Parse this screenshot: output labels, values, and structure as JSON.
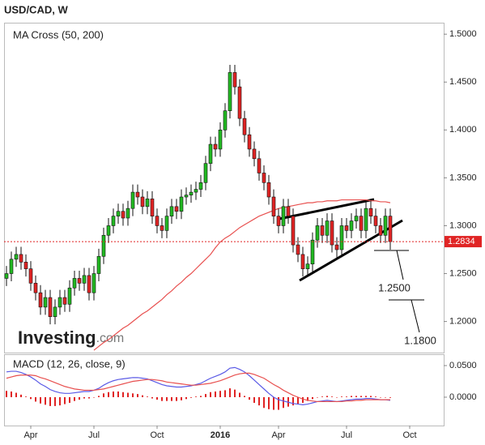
{
  "title": "USD/CAD, W",
  "logo": [
    "Investing",
    ".com"
  ],
  "chart_data": [
    {
      "type": "candlestick",
      "title": "MA Cross (50, 200)",
      "categories": [
        null,
        null,
        null,
        null,
        null,
        "Apr",
        null,
        null,
        null,
        null,
        null,
        null,
        null,
        null,
        null,
        null,
        null,
        null,
        "Jul",
        null,
        null,
        null,
        null,
        null,
        null,
        null,
        null,
        null,
        null,
        null,
        null,
        "Oct",
        null,
        null,
        null,
        null,
        null,
        null,
        null,
        null,
        null,
        null,
        null,
        null,
        "2016",
        null,
        null,
        null,
        null,
        null,
        null,
        null,
        null,
        null,
        null,
        null,
        "Apr",
        null,
        null,
        null,
        null,
        null,
        null,
        null,
        null,
        null,
        null,
        null,
        null,
        null,
        "Jul",
        null,
        null,
        null,
        null,
        null,
        null,
        null,
        null,
        null,
        null,
        null,
        null,
        "Oct",
        null,
        null,
        null,
        null,
        null,
        null
      ],
      "open": [
        1.245,
        1.25,
        1.265,
        1.27,
        1.262,
        1.255,
        1.24,
        1.23,
        1.215,
        1.225,
        1.205,
        1.215,
        1.225,
        1.218,
        1.235,
        1.245,
        1.24,
        1.248,
        1.23,
        1.25,
        1.268,
        1.29,
        1.3,
        1.31,
        1.315,
        1.308,
        1.318,
        1.335,
        1.33,
        1.32,
        1.328,
        1.31,
        1.3,
        1.295,
        1.31,
        1.32,
        1.315,
        1.33,
        1.332,
        1.335,
        1.338,
        1.345,
        1.365,
        1.385,
        1.38,
        1.4,
        1.42,
        1.46,
        1.445,
        1.412,
        1.395,
        1.38,
        1.37,
        1.355,
        1.345,
        1.33,
        1.31,
        1.3,
        1.32,
        1.31,
        1.28,
        1.27,
        1.255,
        1.26,
        1.285,
        1.3,
        1.29,
        1.305,
        1.28,
        1.275,
        1.3,
        1.295,
        1.305,
        1.31,
        1.295,
        1.318,
        1.31,
        1.3,
        1.29,
        1.31,
        null,
        null,
        null,
        null,
        null,
        null,
        null,
        null,
        null,
        null
      ],
      "high": [
        1.258,
        1.273,
        1.278,
        1.278,
        1.27,
        1.263,
        1.248,
        1.238,
        1.233,
        1.233,
        1.223,
        1.233,
        1.233,
        1.243,
        1.253,
        1.253,
        1.256,
        1.256,
        1.258,
        1.276,
        1.298,
        1.308,
        1.318,
        1.323,
        1.323,
        1.326,
        1.343,
        1.343,
        1.338,
        1.336,
        1.336,
        1.318,
        1.308,
        1.318,
        1.328,
        1.328,
        1.338,
        1.34,
        1.343,
        1.346,
        1.353,
        1.373,
        1.393,
        1.393,
        1.408,
        1.428,
        1.468,
        1.468,
        1.453,
        1.42,
        1.403,
        1.388,
        1.378,
        1.363,
        1.353,
        1.338,
        1.318,
        1.328,
        1.328,
        1.318,
        1.288,
        1.278,
        1.268,
        1.293,
        1.308,
        1.308,
        1.313,
        1.313,
        1.288,
        1.308,
        1.308,
        1.313,
        1.318,
        1.318,
        1.326,
        1.326,
        1.318,
        1.308,
        1.318,
        1.318,
        null,
        null,
        null,
        null,
        null,
        null,
        null,
        null,
        null,
        null
      ],
      "low": [
        1.237,
        1.242,
        1.257,
        1.254,
        1.247,
        1.232,
        1.222,
        1.207,
        1.207,
        1.197,
        1.197,
        1.207,
        1.21,
        1.21,
        1.227,
        1.232,
        1.232,
        1.222,
        1.222,
        1.242,
        1.26,
        1.282,
        1.292,
        1.302,
        1.3,
        1.3,
        1.31,
        1.322,
        1.312,
        1.312,
        1.302,
        1.292,
        1.287,
        1.287,
        1.302,
        1.307,
        1.307,
        1.322,
        1.324,
        1.327,
        1.33,
        1.337,
        1.357,
        1.372,
        1.372,
        1.392,
        1.412,
        1.437,
        1.404,
        1.387,
        1.372,
        1.362,
        1.347,
        1.337,
        1.322,
        1.302,
        1.292,
        1.292,
        1.302,
        1.272,
        1.262,
        1.247,
        1.247,
        1.252,
        1.277,
        1.282,
        1.282,
        1.272,
        1.267,
        1.267,
        1.287,
        1.287,
        1.297,
        1.287,
        1.287,
        1.302,
        1.292,
        1.282,
        1.282,
        1.275,
        null,
        null,
        null,
        null,
        null,
        null,
        null,
        null,
        null,
        null
      ],
      "close": [
        1.25,
        1.265,
        1.27,
        1.262,
        1.255,
        1.24,
        1.23,
        1.215,
        1.225,
        1.205,
        1.215,
        1.225,
        1.218,
        1.235,
        1.245,
        1.24,
        1.248,
        1.23,
        1.25,
        1.268,
        1.29,
        1.3,
        1.31,
        1.315,
        1.308,
        1.318,
        1.335,
        1.33,
        1.32,
        1.328,
        1.31,
        1.3,
        1.295,
        1.31,
        1.32,
        1.315,
        1.33,
        1.332,
        1.335,
        1.338,
        1.345,
        1.365,
        1.385,
        1.38,
        1.4,
        1.42,
        1.46,
        1.445,
        1.412,
        1.395,
        1.38,
        1.37,
        1.355,
        1.345,
        1.33,
        1.31,
        1.3,
        1.32,
        1.31,
        1.28,
        1.27,
        1.255,
        1.26,
        1.285,
        1.3,
        1.29,
        1.305,
        1.28,
        1.275,
        1.3,
        1.295,
        1.305,
        1.31,
        1.295,
        1.318,
        1.31,
        1.3,
        1.29,
        1.31,
        1.2834,
        null,
        null,
        null,
        null,
        null,
        null,
        null,
        null,
        null,
        null
      ],
      "up_color": "#22b922",
      "down_color": "#e02424",
      "ma": {
        "color": "#e8504f",
        "values": [
          null,
          null,
          null,
          null,
          null,
          null,
          null,
          null,
          null,
          null,
          null,
          null,
          null,
          null,
          null,
          null,
          null,
          null,
          1.17,
          1.174,
          1.178,
          1.181,
          1.185,
          1.189,
          1.193,
          1.196,
          1.2,
          1.204,
          1.208,
          1.211,
          1.215,
          1.219,
          1.223,
          1.228,
          1.232,
          1.237,
          1.241,
          1.246,
          1.25,
          1.255,
          1.26,
          1.265,
          1.27,
          1.277,
          1.283,
          1.287,
          1.29,
          1.294,
          1.298,
          1.301,
          1.304,
          1.307,
          1.31,
          1.312,
          1.314,
          1.316,
          1.318,
          1.319,
          1.32,
          1.321,
          1.322,
          1.323,
          1.324,
          1.324,
          1.325,
          1.325,
          1.326,
          1.326,
          1.326,
          1.327,
          1.327,
          1.327,
          1.327,
          1.327,
          1.327,
          1.326,
          1.326,
          1.325,
          1.325,
          1.324,
          null,
          null,
          null,
          null,
          null,
          null,
          null,
          null,
          null,
          null
        ]
      },
      "last_price": 1.2834,
      "last_color": "#e02424",
      "annotations": [
        "1.2500",
        "1.1800"
      ],
      "ylim": [
        1.1675,
        1.512
      ],
      "yticks": [
        {
          "value": 1.5,
          "label": "1.5000"
        },
        {
          "value": 1.45,
          "label": "1.4500"
        },
        {
          "value": 1.4,
          "label": "1.4000"
        },
        {
          "value": 1.35,
          "label": "1.3500"
        },
        {
          "value": 1.3,
          "label": "1.3000"
        },
        {
          "value": 1.25,
          "label": "1.2500"
        },
        {
          "value": 1.2,
          "label": "1.2000"
        }
      ]
    },
    {
      "type": "line",
      "title": "MACD (12, 26, close, 9)",
      "series": [
        {
          "color": "#5a5ae6",
          "values": [
            0.04,
            0.041,
            0.041,
            0.039,
            0.036,
            0.032,
            0.027,
            0.021,
            0.017,
            0.012,
            0.009,
            0.007,
            0.006,
            0.006,
            0.007,
            0.008,
            0.009,
            0.009,
            0.011,
            0.014,
            0.019,
            0.023,
            0.026,
            0.028,
            0.029,
            0.03,
            0.031,
            0.031,
            0.03,
            0.029,
            0.026,
            0.023,
            0.02,
            0.018,
            0.017,
            0.016,
            0.016,
            0.017,
            0.018,
            0.02,
            0.022,
            0.026,
            0.03,
            0.033,
            0.036,
            0.04,
            0.046,
            0.047,
            0.044,
            0.04,
            0.034,
            0.027,
            0.02,
            0.013,
            0.006,
            0.0,
            -0.004,
            -0.006,
            -0.008,
            -0.01,
            -0.011,
            -0.012,
            -0.011,
            -0.009,
            -0.007,
            -0.006,
            -0.005,
            -0.006,
            -0.007,
            -0.006,
            -0.005,
            -0.004,
            -0.003,
            -0.003,
            -0.002,
            -0.002,
            -0.003,
            -0.004,
            -0.004,
            -0.005,
            null,
            null,
            null,
            null,
            null,
            null,
            null,
            null,
            null,
            null
          ]
        },
        {
          "color": "#e8504f",
          "values": [
            0.03,
            0.032,
            0.034,
            0.035,
            0.035,
            0.035,
            0.034,
            0.031,
            0.029,
            0.026,
            0.023,
            0.02,
            0.017,
            0.015,
            0.013,
            0.012,
            0.011,
            0.011,
            0.011,
            0.012,
            0.013,
            0.015,
            0.017,
            0.019,
            0.021,
            0.023,
            0.025,
            0.026,
            0.027,
            0.028,
            0.028,
            0.027,
            0.026,
            0.024,
            0.023,
            0.022,
            0.021,
            0.02,
            0.019,
            0.019,
            0.02,
            0.021,
            0.022,
            0.024,
            0.026,
            0.029,
            0.032,
            0.035,
            0.037,
            0.038,
            0.038,
            0.036,
            0.033,
            0.03,
            0.025,
            0.02,
            0.016,
            0.011,
            0.007,
            0.003,
            0.0,
            -0.003,
            -0.005,
            -0.006,
            -0.007,
            -0.007,
            -0.007,
            -0.007,
            -0.007,
            -0.007,
            -0.006,
            -0.006,
            -0.005,
            -0.005,
            -0.004,
            -0.004,
            -0.004,
            -0.004,
            -0.004,
            -0.004,
            null,
            null,
            null,
            null,
            null,
            null,
            null,
            null,
            null,
            null
          ]
        }
      ],
      "histogram": {
        "color": "#e02424",
        "values": [
          0.01,
          0.009,
          0.007,
          0.004,
          0.001,
          -0.003,
          -0.007,
          -0.01,
          -0.012,
          -0.014,
          -0.014,
          -0.013,
          -0.011,
          -0.009,
          -0.006,
          -0.004,
          -0.002,
          -0.002,
          0,
          0.002,
          0.006,
          0.008,
          0.009,
          0.009,
          0.008,
          0.007,
          0.006,
          0.005,
          0.003,
          0.001,
          -0.002,
          -0.004,
          -0.006,
          -0.006,
          -0.006,
          -0.006,
          -0.005,
          -0.003,
          -0.001,
          0.001,
          0.002,
          0.005,
          0.008,
          0.009,
          0.01,
          0.011,
          0.014,
          0.012,
          0.007,
          0.002,
          -0.004,
          -0.009,
          -0.013,
          -0.017,
          -0.019,
          -0.02,
          -0.02,
          -0.017,
          -0.015,
          -0.013,
          -0.011,
          -0.009,
          -0.006,
          -0.003,
          0,
          0.001,
          0.002,
          0.001,
          0,
          0.001,
          0.001,
          0.002,
          0.002,
          0.002,
          0.002,
          0.002,
          0.001,
          0,
          0,
          -0.001,
          null,
          null,
          null,
          null,
          null,
          null,
          null,
          null,
          null,
          null
        ]
      },
      "ylim": [
        -0.0449,
        0.068
      ],
      "yticks": [
        {
          "value": 0.05,
          "label": "0.0500"
        },
        {
          "value": 0,
          "label": "0.0000"
        }
      ]
    }
  ]
}
